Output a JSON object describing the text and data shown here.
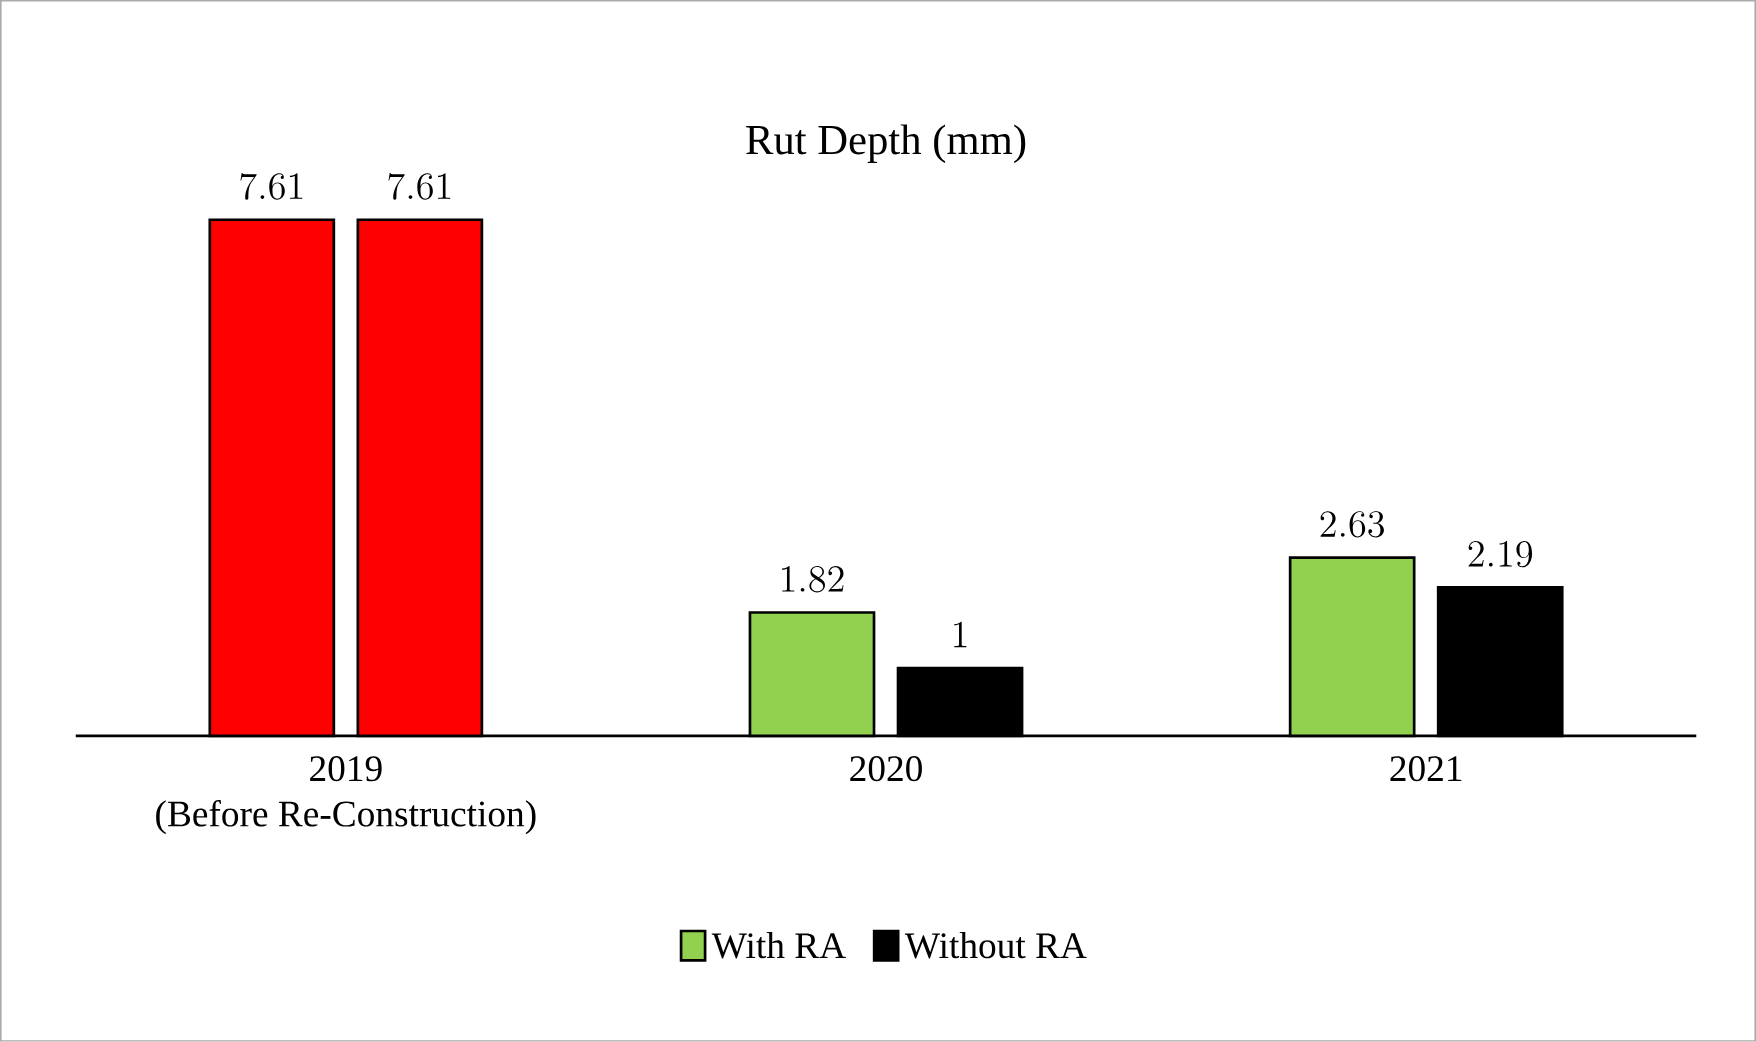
{
  "chart_data": {
    "type": "bar",
    "title": "Rut Depth (mm)",
    "categories": [
      "2019\n(Before Re-Construction)",
      "2020",
      "2021"
    ],
    "series": [
      {
        "name": "With RA",
        "color": "#92d050",
        "colors": [
          "#ff0000",
          "#92d050",
          "#92d050"
        ],
        "values": [
          7.61,
          1.82,
          2.63
        ]
      },
      {
        "name": "Without RA",
        "color": "#000000",
        "colors": [
          "#ff0000",
          "#000000",
          "#000000"
        ],
        "values": [
          7.61,
          1,
          2.19
        ]
      }
    ],
    "data_labels": true,
    "legend": "bottom"
  }
}
